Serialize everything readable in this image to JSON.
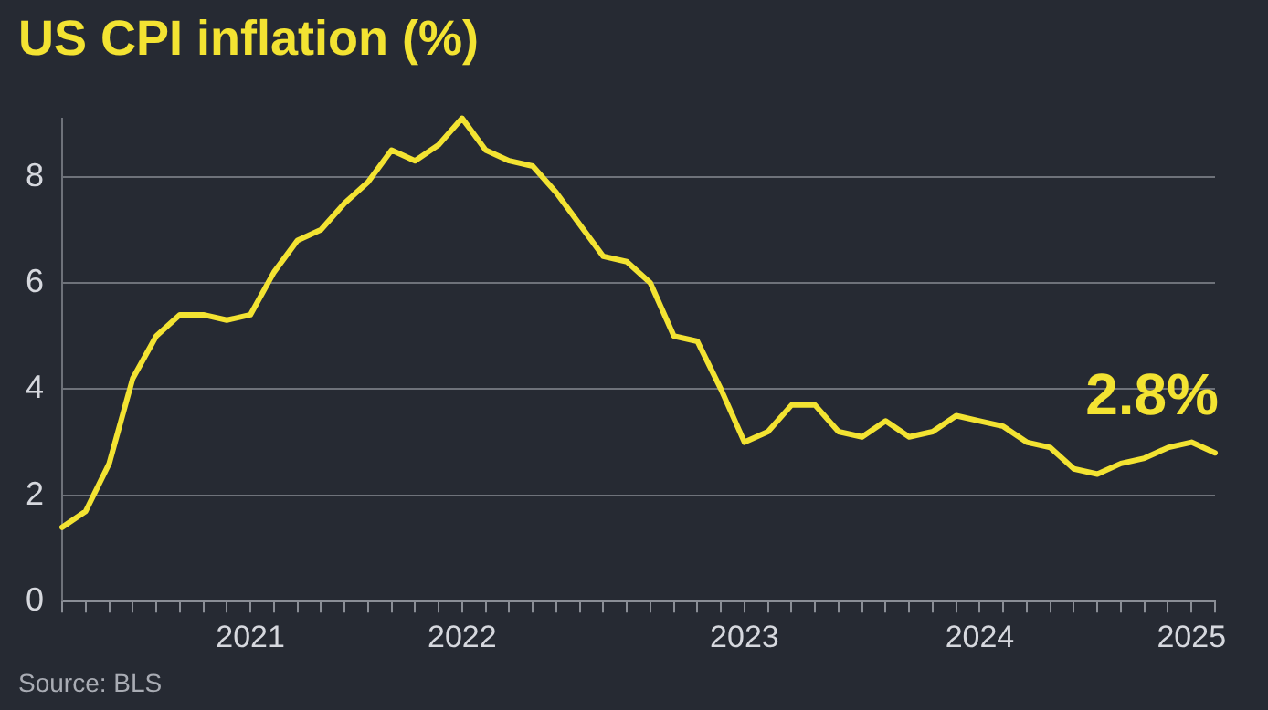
{
  "chart_data": {
    "type": "line",
    "title": "US CPI inflation (%)",
    "categories": [
      null,
      null,
      null,
      null,
      null,
      null,
      null,
      null,
      "2021",
      null,
      null,
      null,
      null,
      null,
      null,
      null,
      null,
      "2022",
      null,
      null,
      null,
      null,
      null,
      null,
      null,
      null,
      null,
      null,
      null,
      "2023",
      null,
      null,
      null,
      null,
      null,
      null,
      null,
      null,
      null,
      "2024",
      null,
      null,
      null,
      null,
      null,
      null,
      null,
      null,
      "2025",
      null
    ],
    "series": [
      {
        "color": "#f3e332",
        "values": [
          1.4,
          1.7,
          2.6,
          4.2,
          5.0,
          5.4,
          5.4,
          5.3,
          5.4,
          6.2,
          6.8,
          7.0,
          7.5,
          7.9,
          8.5,
          8.3,
          8.6,
          9.1,
          8.5,
          8.3,
          8.2,
          7.7,
          7.1,
          6.5,
          6.4,
          6.0,
          5.0,
          4.9,
          4.0,
          3.0,
          3.2,
          3.7,
          3.7,
          3.2,
          3.1,
          3.4,
          3.1,
          3.2,
          3.5,
          3.4,
          3.3,
          3.0,
          2.9,
          2.5,
          2.4,
          2.6,
          2.7,
          2.9,
          3.0,
          2.8
        ]
      }
    ],
    "ylim": [
      0,
      9.1
    ],
    "yticks": [
      0,
      2,
      4,
      6,
      8
    ],
    "grid": "y",
    "legend": false,
    "marker": "none",
    "line_style": "solid",
    "annotations": [
      {
        "text": "2.8%",
        "y": 2.8
      },
      "Source: BLS"
    ]
  }
}
